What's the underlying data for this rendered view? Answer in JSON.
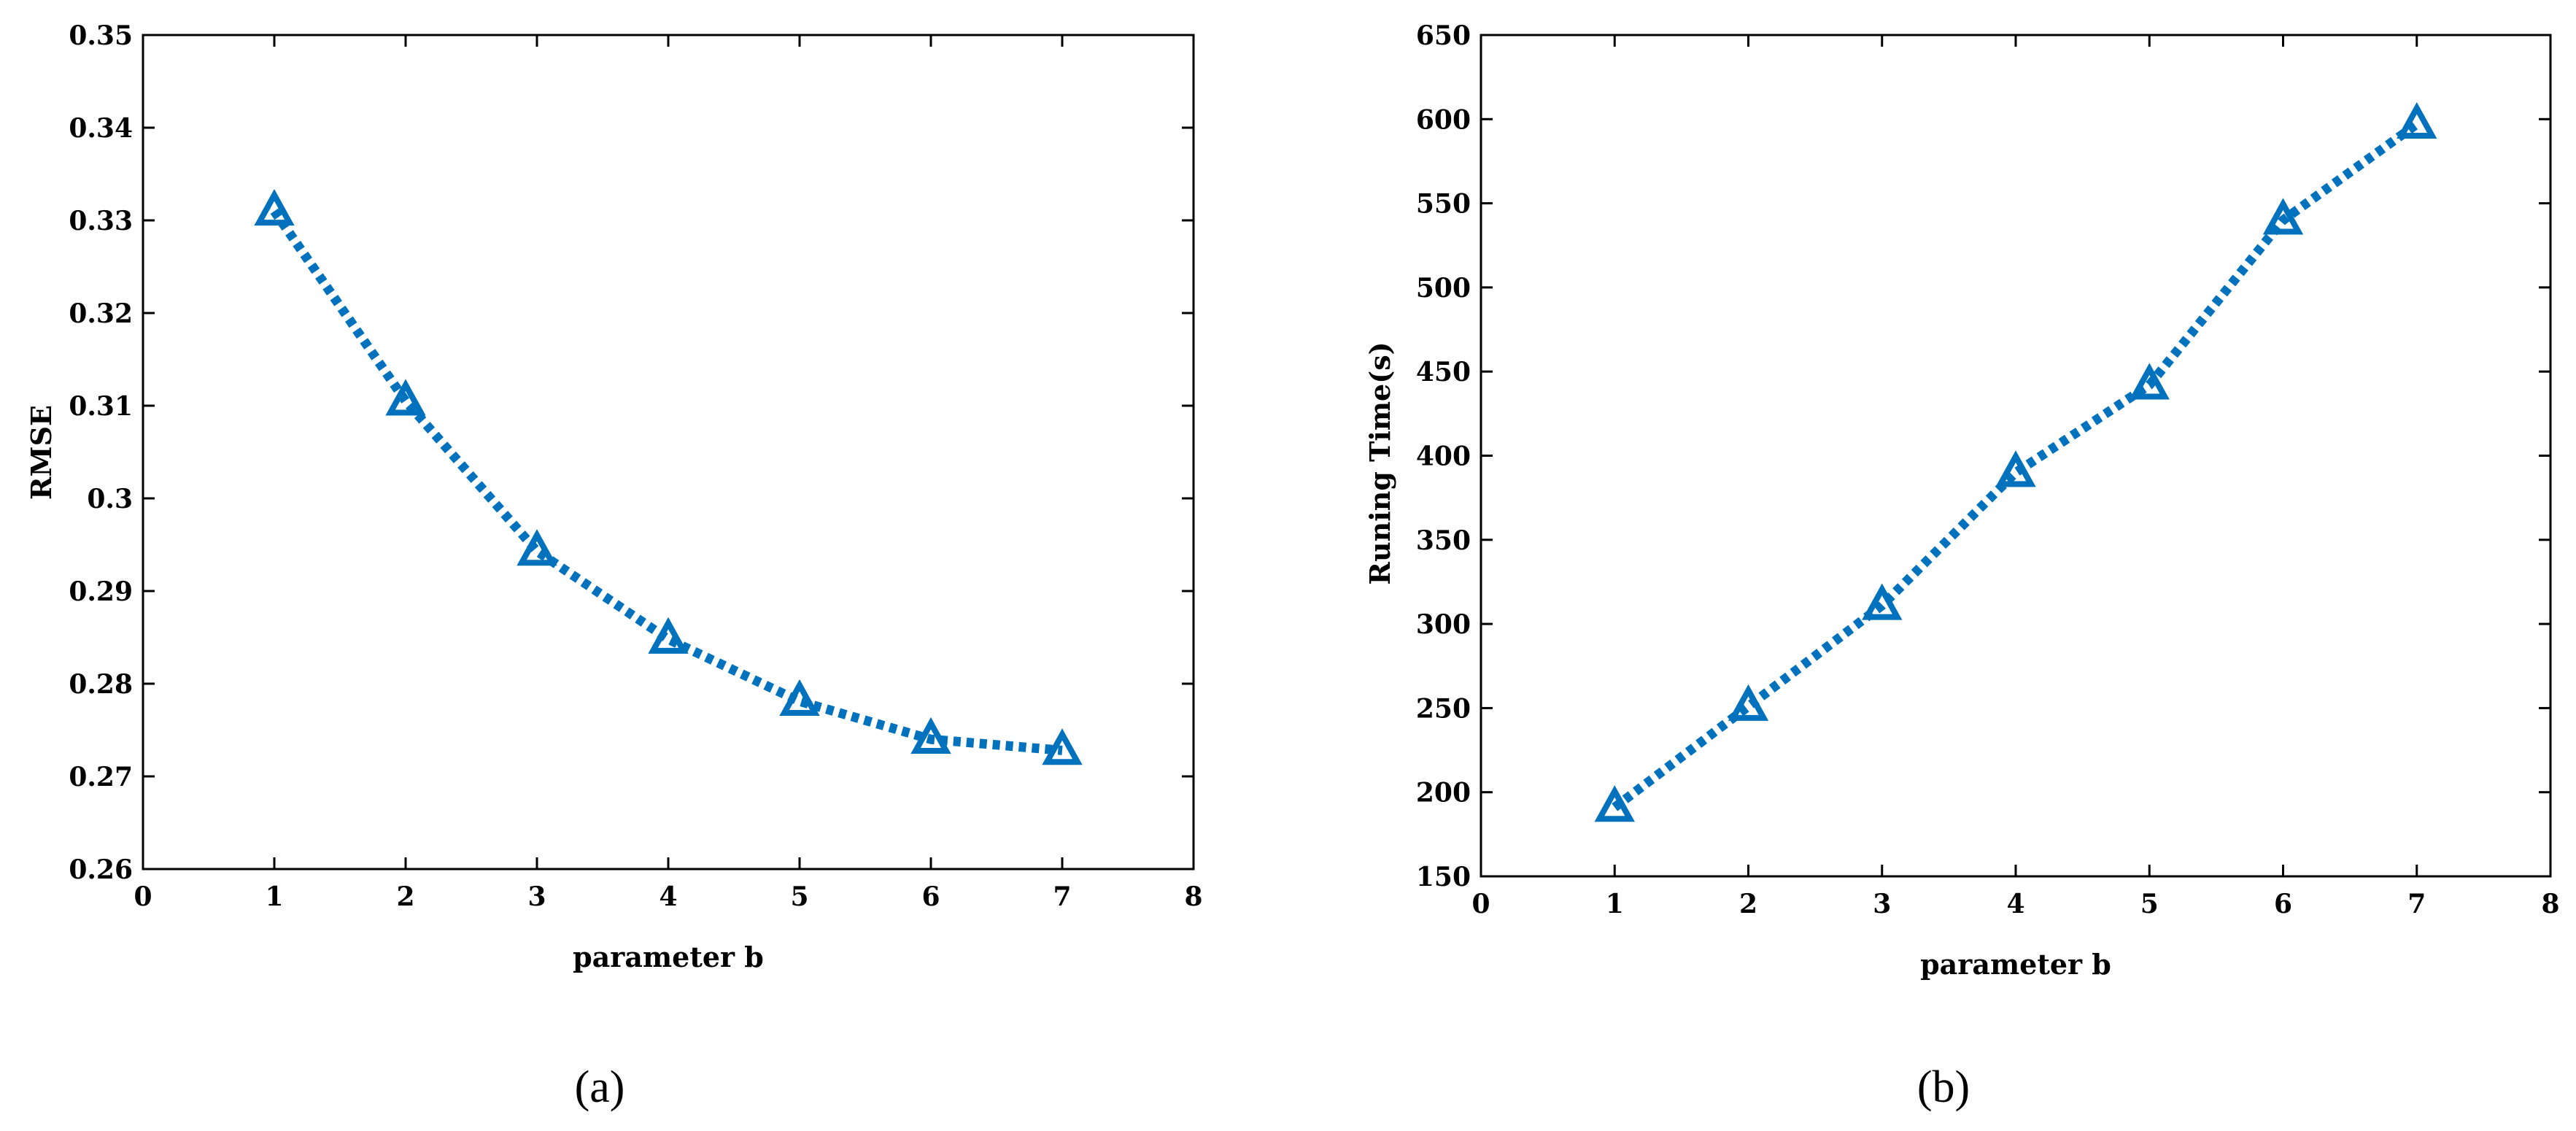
{
  "colors": {
    "series": "#0072BD",
    "axis": "#000000",
    "background": "#ffffff"
  },
  "chart_data": [
    {
      "type": "line",
      "caption": "(a)",
      "title": "",
      "xlabel": "parameter b",
      "ylabel": "RMSE",
      "xlim": [
        0,
        8
      ],
      "ylim": [
        0.26,
        0.35
      ],
      "xticks": [
        "0",
        "1",
        "2",
        "3",
        "4",
        "5",
        "6",
        "7",
        "8"
      ],
      "yticks": [
        "0.26",
        "0.27",
        "0.28",
        "0.29",
        "0.3",
        "0.31",
        "0.32",
        "0.33",
        "0.34",
        "0.35"
      ],
      "grid": false,
      "marker": "triangle",
      "line_style": "dotted",
      "series": [
        {
          "x": [
            1,
            2,
            3,
            4,
            5,
            6,
            7
          ],
          "values": [
            0.331,
            0.3105,
            0.2943,
            0.2848,
            0.2781,
            0.274,
            0.2728
          ]
        }
      ]
    },
    {
      "type": "line",
      "caption": "(b)",
      "title": "",
      "xlabel": "parameter b",
      "ylabel": "Runing Time(s)",
      "xlim": [
        0,
        8
      ],
      "ylim": [
        150,
        650
      ],
      "xticks": [
        "0",
        "1",
        "2",
        "3",
        "4",
        "5",
        "6",
        "7",
        "8"
      ],
      "yticks": [
        "150",
        "200",
        "250",
        "300",
        "350",
        "400",
        "450",
        "500",
        "550",
        "600",
        "650"
      ],
      "grid": false,
      "marker": "triangle",
      "line_style": "dotted",
      "series": [
        {
          "x": [
            1,
            2,
            3,
            4,
            5,
            6,
            7
          ],
          "values": [
            191,
            251,
            311,
            390,
            442,
            540,
            597
          ]
        }
      ]
    }
  ]
}
